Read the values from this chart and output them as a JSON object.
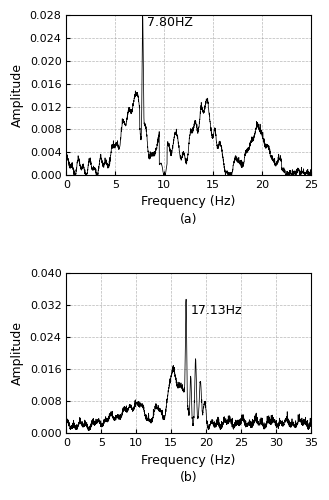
{
  "title_a": "(a)",
  "title_b": "(b)",
  "annotation_a": "7.80HZ",
  "annotation_b": "17.13Hz",
  "peak_a_freq": 7.8,
  "peak_b_freq": 17.13,
  "xlim_a": [
    0,
    25
  ],
  "xlim_b": [
    0,
    35
  ],
  "ylim_a": [
    0,
    0.028
  ],
  "ylim_b": [
    0,
    0.04
  ],
  "xticks_a": [
    0,
    5,
    10,
    15,
    20,
    25
  ],
  "xticks_b": [
    0,
    5,
    10,
    15,
    20,
    25,
    30,
    35
  ],
  "yticks_a": [
    0.0,
    0.004,
    0.008,
    0.012,
    0.016,
    0.02,
    0.024,
    0.028
  ],
  "yticks_b": [
    0.0,
    0.008,
    0.016,
    0.024,
    0.032,
    0.04
  ],
  "xlabel": "Frequency (Hz)",
  "ylabel": "Amplitude",
  "line_color": "#000000",
  "background_color": "#ffffff",
  "grid_color": "#999999",
  "font_size": 9,
  "label_font_size": 9,
  "tick_font_size": 8
}
